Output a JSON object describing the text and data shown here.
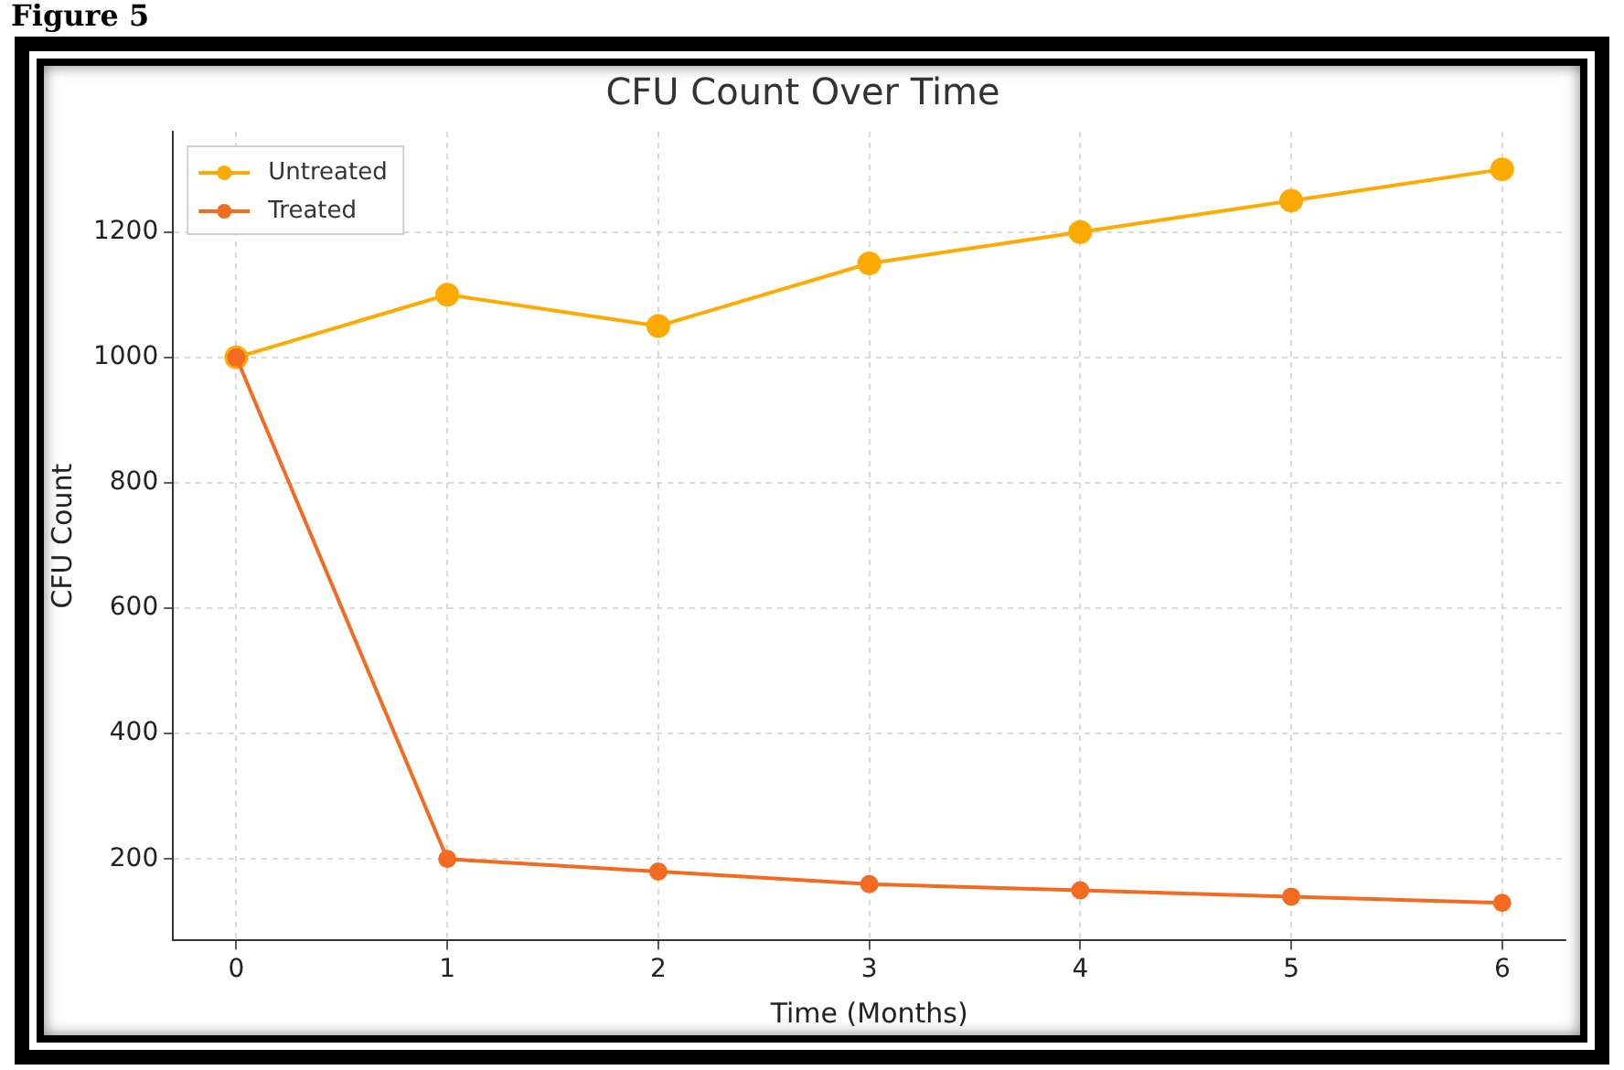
{
  "chart_data": {
    "type": "line",
    "title": "CFU Count Over Time",
    "xlabel": "Time (Months)",
    "ylabel": "CFU Count",
    "annotations": [
      "Figure 5"
    ],
    "x": [
      0,
      1,
      2,
      3,
      4,
      5,
      6
    ],
    "series": [
      {
        "name": "Untreated",
        "color": "#ffaa00",
        "values": [
          1000,
          1100,
          1050,
          1150,
          1200,
          1250,
          1300
        ]
      },
      {
        "name": "Treated",
        "color": "#f26b21",
        "values": [
          1000,
          200,
          180,
          160,
          150,
          140,
          130
        ]
      }
    ],
    "xlim": [
      -0.3,
      6.3
    ],
    "xticks": [
      0,
      1,
      2,
      3,
      4,
      5,
      6
    ],
    "ylim": [
      70,
      1360
    ],
    "yticks": [
      200,
      400,
      600,
      800,
      1000,
      1200
    ],
    "grid": true,
    "legend": "top left",
    "marker": "circle",
    "line_style": "solid"
  }
}
